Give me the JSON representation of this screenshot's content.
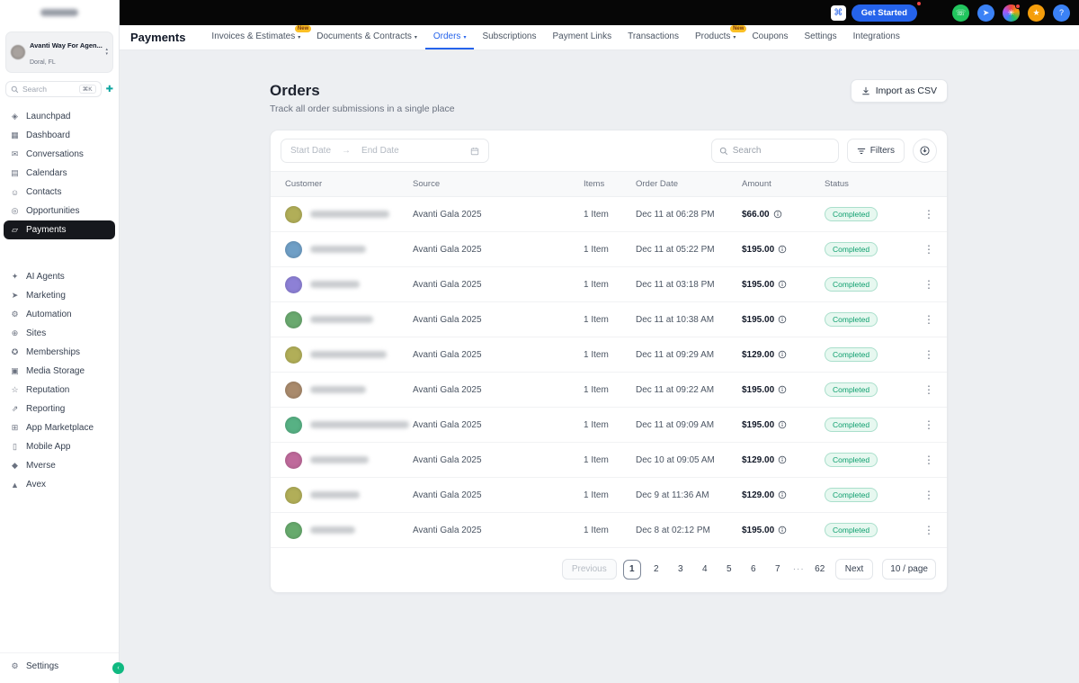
{
  "topbar": {
    "get_started_label": "Get Started",
    "launcher_glyph": "⌘",
    "circle_icons": [
      {
        "name": "phone-icon",
        "glyph": "☏",
        "color": "#22c55e"
      },
      {
        "name": "connect-icon",
        "glyph": "➤",
        "color": "#3b82f6"
      },
      {
        "name": "apps-icon",
        "glyph": "✳",
        "color": "#7c3aed",
        "gradient": true,
        "notification": true
      },
      {
        "name": "academy-icon",
        "glyph": "★",
        "color": "#f59e0b"
      },
      {
        "name": "help-icon",
        "glyph": "?",
        "color": "#3b82f6"
      }
    ]
  },
  "header": {
    "title": "Payments",
    "tabs": [
      {
        "label": "Invoices & Estimates",
        "badge": "New",
        "chevron": true
      },
      {
        "label": "Documents & Contracts",
        "chevron": true
      },
      {
        "label": "Orders",
        "chevron": true,
        "active": true
      },
      {
        "label": "Subscriptions"
      },
      {
        "label": "Payment Links"
      },
      {
        "label": "Transactions"
      },
      {
        "label": "Products",
        "badge": "New",
        "chevron": true
      },
      {
        "label": "Coupons"
      },
      {
        "label": "Settings"
      },
      {
        "label": "Integrations"
      }
    ]
  },
  "sidebar": {
    "account": {
      "name": "Avanti Way For Agen...",
      "location": "Doral, FL"
    },
    "search": {
      "placeholder": "Search",
      "shortcut": "⌘K"
    },
    "nav_primary": [
      {
        "label": "Launchpad",
        "icon": "launchpad-icon",
        "glyph": "◈"
      },
      {
        "label": "Dashboard",
        "icon": "dashboard-icon",
        "glyph": "▦"
      },
      {
        "label": "Conversations",
        "icon": "conversations-icon",
        "glyph": "✉"
      },
      {
        "label": "Calendars",
        "icon": "calendars-icon",
        "glyph": "▤"
      },
      {
        "label": "Contacts",
        "icon": "contacts-icon",
        "glyph": "☺"
      },
      {
        "label": "Opportunities",
        "icon": "opportunities-icon",
        "glyph": "◎"
      },
      {
        "label": "Payments",
        "icon": "payments-icon",
        "glyph": "▱",
        "active": true
      }
    ],
    "nav_secondary": [
      {
        "label": "AI Agents",
        "icon": "ai-agents-icon",
        "glyph": "✦"
      },
      {
        "label": "Marketing",
        "icon": "marketing-icon",
        "glyph": "➤"
      },
      {
        "label": "Automation",
        "icon": "automation-icon",
        "glyph": "⚙"
      },
      {
        "label": "Sites",
        "icon": "sites-icon",
        "glyph": "⊕"
      },
      {
        "label": "Memberships",
        "icon": "memberships-icon",
        "glyph": "✪"
      },
      {
        "label": "Media Storage",
        "icon": "media-storage-icon",
        "glyph": "▣"
      },
      {
        "label": "Reputation",
        "icon": "reputation-icon",
        "glyph": "☆"
      },
      {
        "label": "Reporting",
        "icon": "reporting-icon",
        "glyph": "⇗"
      },
      {
        "label": "App Marketplace",
        "icon": "app-marketplace-icon",
        "glyph": "⊞"
      },
      {
        "label": "Mobile App",
        "icon": "mobile-app-icon",
        "glyph": "▯"
      },
      {
        "label": "Mverse",
        "icon": "mverse-icon",
        "glyph": "◆"
      },
      {
        "label": "Avex",
        "icon": "avex-icon",
        "glyph": "▲"
      }
    ],
    "footer": {
      "label": "Settings",
      "glyph": "⚙"
    }
  },
  "page": {
    "title": "Orders",
    "subtitle": "Track all order submissions in a single place",
    "import_button": "Import as CSV"
  },
  "toolbar": {
    "start_date": "Start Date",
    "end_date": "End Date",
    "range_arrow": "→",
    "search_placeholder": "Search",
    "filters_label": "Filters"
  },
  "table": {
    "columns": [
      "Customer",
      "Source",
      "Items",
      "Order Date",
      "Amount",
      "Status"
    ],
    "kebab_glyph": "⋮",
    "rows": [
      {
        "avatar_color": "#b1ae58",
        "name_width": 88,
        "source": "Avanti Gala 2025",
        "items": "1 Item",
        "date": "Dec 11 at 06:28 PM",
        "amount": "$66.00",
        "status": "Completed"
      },
      {
        "avatar_color": "#6f9fc6",
        "name_width": 62,
        "source": "Avanti Gala 2025",
        "items": "1 Item",
        "date": "Dec 11 at 05:22 PM",
        "amount": "$195.00",
        "status": "Completed"
      },
      {
        "avatar_color": "#8d80d6",
        "name_width": 55,
        "source": "Avanti Gala 2025",
        "items": "1 Item",
        "date": "Dec 11 at 03:18 PM",
        "amount": "$195.00",
        "status": "Completed"
      },
      {
        "avatar_color": "#6aa96f",
        "name_width": 70,
        "source": "Avanti Gala 2025",
        "items": "1 Item",
        "date": "Dec 11 at 10:38 AM",
        "amount": "$195.00",
        "status": "Completed"
      },
      {
        "avatar_color": "#b1ae58",
        "name_width": 85,
        "source": "Avanti Gala 2025",
        "items": "1 Item",
        "date": "Dec 11 at 09:29 AM",
        "amount": "$129.00",
        "status": "Completed"
      },
      {
        "avatar_color": "#a98a6c",
        "name_width": 62,
        "source": "Avanti Gala 2025",
        "items": "1 Item",
        "date": "Dec 11 at 09:22 AM",
        "amount": "$195.00",
        "status": "Completed"
      },
      {
        "avatar_color": "#57b184",
        "name_width": 110,
        "source": "Avanti Gala 2025",
        "items": "1 Item",
        "date": "Dec 11 at 09:09 AM",
        "amount": "$195.00",
        "status": "Completed"
      },
      {
        "avatar_color": "#bf6a9b",
        "name_width": 65,
        "source": "Avanti Gala 2025",
        "items": "1 Item",
        "date": "Dec 10 at 09:05 AM",
        "amount": "$129.00",
        "status": "Completed"
      },
      {
        "avatar_color": "#b1ae58",
        "name_width": 55,
        "source": "Avanti Gala 2025",
        "items": "1 Item",
        "date": "Dec 9 at 11:36 AM",
        "amount": "$129.00",
        "status": "Completed"
      },
      {
        "avatar_color": "#67aa6d",
        "name_width": 50,
        "source": "Avanti Gala 2025",
        "items": "1 Item",
        "date": "Dec 8 at 02:12 PM",
        "amount": "$195.00",
        "status": "Completed"
      }
    ]
  },
  "pagination": {
    "previous_label": "Previous",
    "pages": [
      "1",
      "2",
      "3",
      "4",
      "5",
      "6",
      "7"
    ],
    "active_page": "1",
    "ellipsis": "···",
    "last_page": "62",
    "next_label": "Next",
    "page_size_label": "10 / page"
  },
  "colors": {
    "accent_blue": "#2563eb",
    "status_green_text": "#0e9f6e",
    "status_green_bg": "#e7f8f0",
    "new_badge_bg": "#fbbf24",
    "active_nav_bg": "#16181d"
  }
}
